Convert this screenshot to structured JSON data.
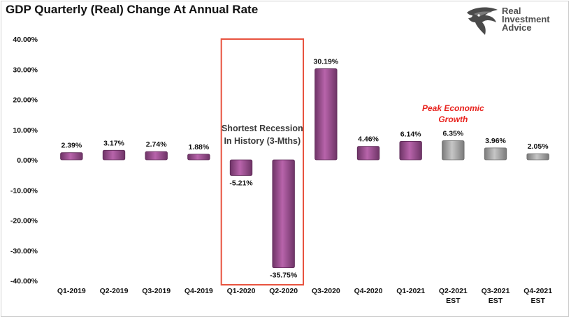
{
  "title": "GDP Quarterly (Real) Change At Annual Rate",
  "logo": {
    "line1": "Real",
    "line2": "Investment",
    "line3": "Advice",
    "icon": "eagle-head-icon"
  },
  "colors": {
    "actual_bar": "#9b4f91",
    "estimate_bar": "#9c9c9c",
    "highlight_box": "#e8533f",
    "peak_text": "#e8231e"
  },
  "annotations": {
    "recession_line1": "Shortest Recession",
    "recession_line2": "In History (3-Mths)",
    "peak_line1": "Peak Economic",
    "peak_line2": "Growth"
  },
  "chart_data": {
    "type": "bar",
    "title": "GDP Quarterly (Real) Change At Annual Rate",
    "xlabel": "",
    "ylabel": "",
    "ylim": [
      -40,
      40
    ],
    "yticks": [
      "40.00%",
      "30.00%",
      "20.00%",
      "10.00%",
      "0.00%",
      "-10.00%",
      "-20.00%",
      "-30.00%",
      "-40.00%"
    ],
    "grid": false,
    "categories": [
      "Q1-2019",
      "Q2-2019",
      "Q3-2019",
      "Q4-2019",
      "Q1-2020",
      "Q2-2020",
      "Q3-2020",
      "Q4-2020",
      "Q1-2021",
      "Q2-2021\nEST",
      "Q3-2021\nEST",
      "Q4-2021\nEST"
    ],
    "values": [
      2.39,
      3.17,
      2.74,
      1.88,
      -5.21,
      -35.75,
      30.19,
      4.46,
      6.14,
      6.35,
      3.96,
      2.05
    ],
    "value_labels": [
      "2.39%",
      "3.17%",
      "2.74%",
      "1.88%",
      "-5.21%",
      "-35.75%",
      "30.19%",
      "4.46%",
      "6.14%",
      "6.35%",
      "3.96%",
      "2.05%"
    ],
    "estimate": [
      false,
      false,
      false,
      false,
      false,
      false,
      false,
      false,
      false,
      true,
      true,
      true
    ]
  }
}
